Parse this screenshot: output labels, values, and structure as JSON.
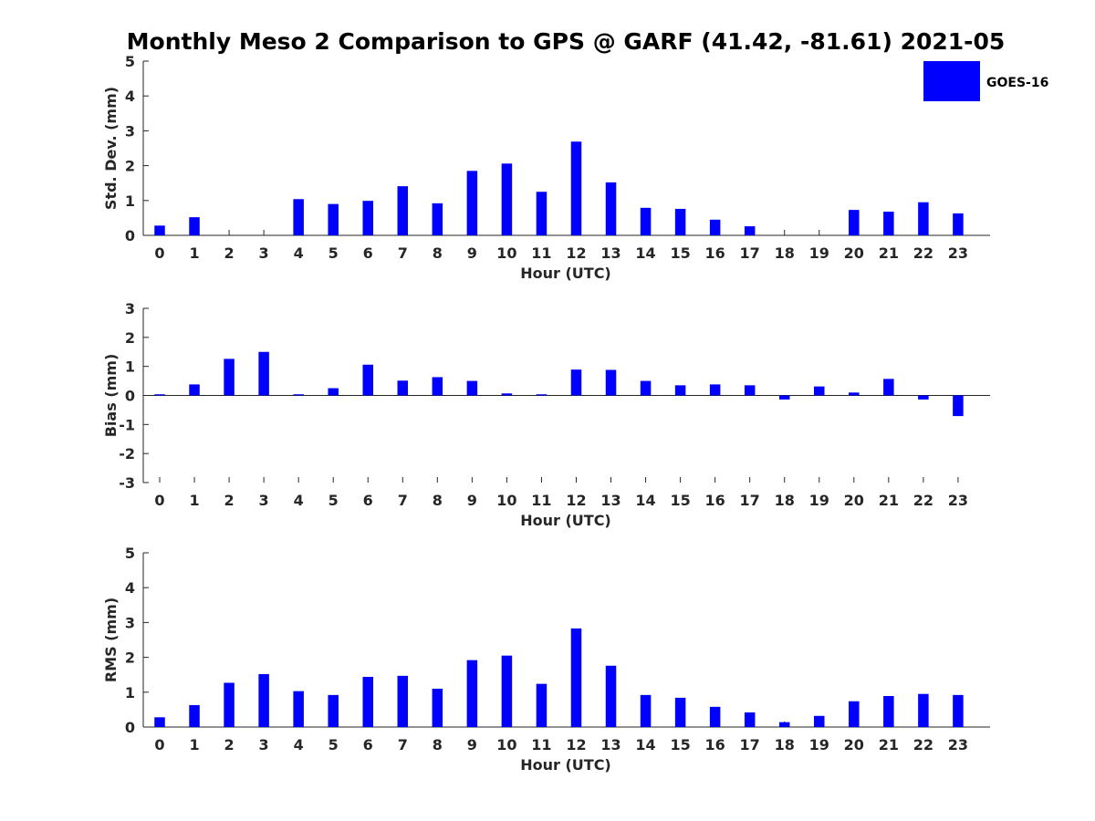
{
  "title": "Monthly Meso 2 Comparison to GPS @ GARF (41.42, -81.61) 2021-05",
  "legend": {
    "label": "GOES-16",
    "color": "#0000ff",
    "placement": "top-right"
  },
  "chart_data": [
    {
      "type": "bar",
      "title": "",
      "xlabel": "Hour (UTC)",
      "ylabel": "Std. Dev. (mm)",
      "categories": [
        "0",
        "1",
        "2",
        "3",
        "4",
        "5",
        "6",
        "7",
        "8",
        "9",
        "10",
        "11",
        "12",
        "13",
        "14",
        "15",
        "16",
        "17",
        "18",
        "19",
        "20",
        "21",
        "22",
        "23"
      ],
      "yticks": [
        "0",
        "1",
        "2",
        "3",
        "4",
        "5"
      ],
      "ylim": [
        0,
        5
      ],
      "series": [
        {
          "name": "GOES-16",
          "color": "#0000ff",
          "values": [
            0.28,
            0.52,
            0,
            0,
            1.04,
            0.9,
            0.99,
            1.41,
            0.92,
            1.85,
            2.06,
            1.25,
            2.69,
            1.52,
            0.79,
            0.76,
            0.45,
            0.26,
            0,
            0,
            0.73,
            0.68,
            0.95,
            0.63
          ]
        }
      ]
    },
    {
      "type": "bar",
      "title": "",
      "xlabel": "Hour (UTC)",
      "ylabel": "Bias (mm)",
      "categories": [
        "0",
        "1",
        "2",
        "3",
        "4",
        "5",
        "6",
        "7",
        "8",
        "9",
        "10",
        "11",
        "12",
        "13",
        "14",
        "15",
        "16",
        "17",
        "18",
        "19",
        "20",
        "21",
        "22",
        "23"
      ],
      "yticks": [
        "-3",
        "-2",
        "-1",
        "0",
        "1",
        "2",
        "3"
      ],
      "ylim": [
        -3,
        3
      ],
      "series": [
        {
          "name": "GOES-16",
          "color": "#0000ff",
          "values": [
            0.04,
            0.38,
            1.26,
            1.5,
            0.04,
            0.25,
            1.06,
            0.51,
            0.63,
            0.5,
            0.07,
            0.04,
            0.89,
            0.88,
            0.5,
            0.35,
            0.38,
            0.35,
            -0.14,
            0.31,
            0.1,
            0.57,
            -0.14,
            -0.71
          ]
        }
      ]
    },
    {
      "type": "bar",
      "title": "",
      "xlabel": "Hour (UTC)",
      "ylabel": "RMS (mm)",
      "categories": [
        "0",
        "1",
        "2",
        "3",
        "4",
        "5",
        "6",
        "7",
        "8",
        "9",
        "10",
        "11",
        "12",
        "13",
        "14",
        "15",
        "16",
        "17",
        "18",
        "19",
        "20",
        "21",
        "22",
        "23"
      ],
      "yticks": [
        "0",
        "1",
        "2",
        "3",
        "4",
        "5"
      ],
      "ylim": [
        0,
        5
      ],
      "series": [
        {
          "name": "GOES-16",
          "color": "#0000ff",
          "values": [
            0.28,
            0.63,
            1.27,
            1.52,
            1.03,
            0.92,
            1.44,
            1.47,
            1.1,
            1.92,
            2.05,
            1.24,
            2.83,
            1.76,
            0.92,
            0.84,
            0.58,
            0.42,
            0.14,
            0.32,
            0.74,
            0.89,
            0.95,
            0.92
          ]
        }
      ]
    }
  ]
}
